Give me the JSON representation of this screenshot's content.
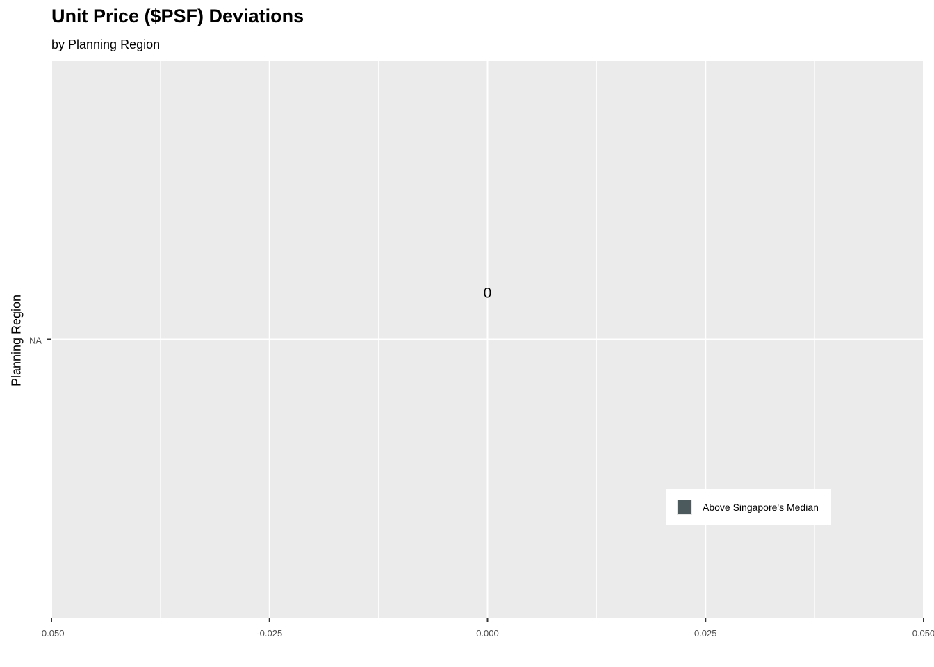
{
  "chart_data": {
    "type": "bar",
    "title": "Unit Price ($PSF) Deviations",
    "subtitle": "by Planning Region",
    "xlabel": "",
    "ylabel": "Planning Region",
    "categories": [
      "NA"
    ],
    "values": [
      0
    ],
    "data_labels": [
      "0"
    ],
    "xlim": [
      -0.05,
      0.05
    ],
    "x_ticks": [
      -0.05,
      -0.025,
      0.0,
      0.025,
      0.05
    ],
    "x_tick_labels": [
      "-0.050",
      "-0.025",
      "0.000",
      "0.025",
      "0.050"
    ],
    "grid": true,
    "legend": {
      "placement": "bottom-right",
      "entries": [
        {
          "label": "Above Singapore's Median",
          "color": "#4d5a5d"
        }
      ]
    },
    "colors": {
      "panel": "#ebebeb",
      "grid": "#ffffff",
      "bar": "#4d5a5d"
    }
  }
}
